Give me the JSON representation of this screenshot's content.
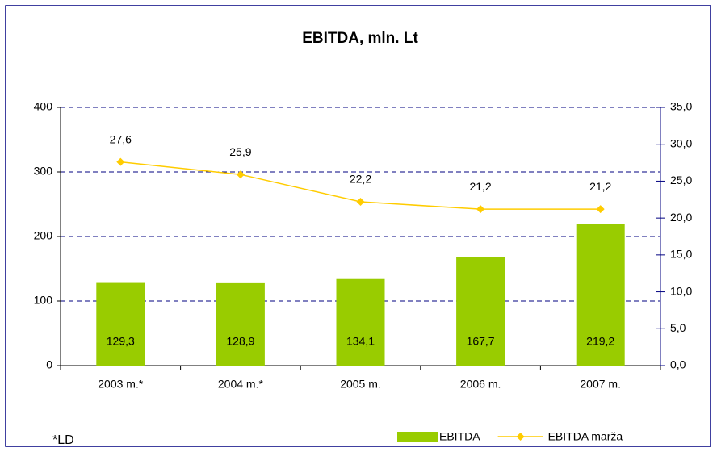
{
  "chart_data": {
    "type": "bar-line",
    "title": "EBITDA, mln. Lt",
    "footnote": "*LD",
    "categories": [
      "2003 m.*",
      "2004 m.*",
      "2005 m.",
      "2006 m.",
      "2007 m."
    ],
    "series": [
      {
        "name": "EBITDA",
        "type": "bar",
        "color": "#99cc00",
        "values": [
          129.3,
          128.9,
          134.1,
          167.7,
          219.2
        ],
        "value_labels": [
          "129,3",
          "128,9",
          "134,1",
          "167,7",
          "219,2"
        ]
      },
      {
        "name": "EBITDA marža",
        "type": "line",
        "axis": "y2",
        "color": "#ffcc00",
        "values": [
          27.6,
          25.9,
          22.2,
          21.2,
          21.2
        ],
        "value_labels": [
          "27,6",
          "25,9",
          "22,2",
          "21,2",
          "21,2"
        ]
      }
    ],
    "ylim": [
      0,
      400
    ],
    "yticks": [
      0,
      100,
      200,
      300,
      400
    ],
    "y2lim": [
      0,
      35
    ],
    "y2ticks": [
      {
        "value": 0,
        "label": "0,0"
      },
      {
        "value": 5,
        "label": "5,0"
      },
      {
        "value": 10,
        "label": "10,0"
      },
      {
        "value": 15,
        "label": "15,0"
      },
      {
        "value": 20,
        "label": "20,0"
      },
      {
        "value": 25,
        "label": "25,0"
      },
      {
        "value": 30,
        "label": "30,0"
      },
      {
        "value": 35,
        "label": "35,0"
      }
    ],
    "grid": true,
    "legend": "bottom-right"
  }
}
